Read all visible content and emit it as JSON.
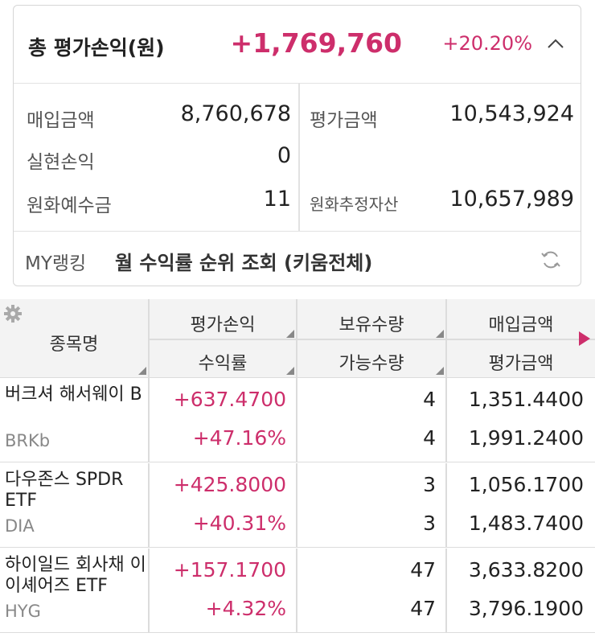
{
  "summary": {
    "title": "총 평가손익(원)",
    "total_profit": "+1,769,760",
    "total_rate": "+20.20%",
    "metrics": {
      "purchase_label": "매입금액",
      "purchase_value": "8,760,678",
      "evaluation_label": "평가금액",
      "evaluation_value": "10,543,924",
      "realized_label": "실현손익",
      "realized_value": "0",
      "deposit_label": "원화예수금",
      "deposit_value": "11",
      "estimated_label": "원화추정자산",
      "estimated_value": "10,657,989"
    },
    "ranking_label": "MY랭킹",
    "ranking_text": "월 수익률 순위 조회 (키움전체)"
  },
  "table": {
    "headers": {
      "name": "종목명",
      "profit": "평가손익",
      "rate": "수익률",
      "holding_qty": "보유수량",
      "available_qty": "가능수량",
      "purchase_amount": "매입금액",
      "evaluation_amount": "평가금액"
    },
    "rows": [
      {
        "name": "버크셔 해서웨이 B",
        "ticker": "BRKb",
        "profit": "+637.4700",
        "rate": "+47.16%",
        "holding_qty": "4",
        "available_qty": "4",
        "purchase_amount": "1,351.4400",
        "evaluation_amount": "1,991.2400"
      },
      {
        "name": "다우존스 SPDR ETF",
        "ticker": "DIA",
        "profit": "+425.8000",
        "rate": "+40.31%",
        "holding_qty": "3",
        "available_qty": "3",
        "purchase_amount": "1,056.1700",
        "evaluation_amount": "1,483.7400"
      },
      {
        "name": "하이일드 회사채 이이셰어즈 ETF",
        "ticker": "HYG",
        "profit": "+157.1700",
        "rate": "+4.32%",
        "holding_qty": "47",
        "available_qty": "47",
        "purchase_amount": "3,633.8200",
        "evaluation_amount": "3,796.1900"
      }
    ]
  },
  "colors": {
    "accent_positive": "#cd2e6b",
    "header_bg": "#f3f3f3",
    "border": "#dcdcdc"
  },
  "icons": {
    "chevron": "chevron-up-icon",
    "refresh": "refresh-icon",
    "settings": "gear-icon",
    "more_columns": "play-right-icon"
  }
}
